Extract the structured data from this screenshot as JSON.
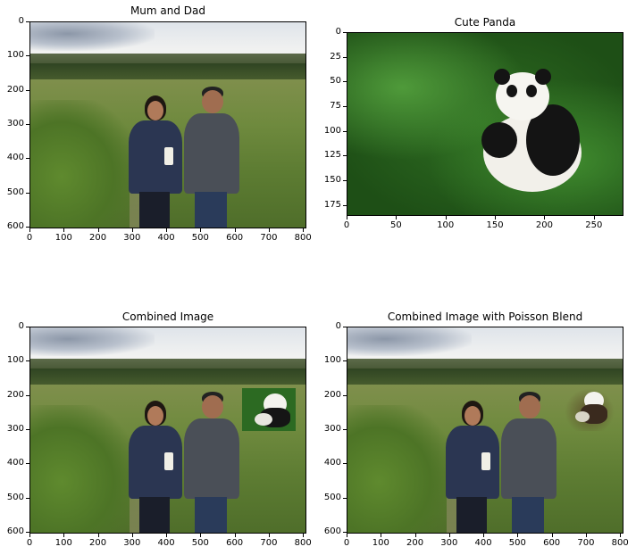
{
  "panels": [
    {
      "title": "Mum and Dad",
      "x_ticks": [
        "0",
        "100",
        "200",
        "300",
        "400",
        "500",
        "600",
        "700",
        "800"
      ],
      "y_ticks": [
        "0",
        "100",
        "200",
        "300",
        "400",
        "500",
        "600"
      ]
    },
    {
      "title": "Cute Panda",
      "x_ticks": [
        "0",
        "50",
        "100",
        "150",
        "200",
        "250"
      ],
      "y_ticks": [
        "0",
        "25",
        "50",
        "75",
        "100",
        "125",
        "150",
        "175"
      ]
    },
    {
      "title": "Combined Image",
      "x_ticks": [
        "0",
        "100",
        "200",
        "300",
        "400",
        "500",
        "600",
        "700",
        "800"
      ],
      "y_ticks": [
        "0",
        "100",
        "200",
        "300",
        "400",
        "500",
        "600"
      ]
    },
    {
      "title": "Combined Image with Poisson Blend",
      "x_ticks": [
        "0",
        "100",
        "200",
        "300",
        "400",
        "500",
        "600",
        "700",
        "800"
      ],
      "y_ticks": [
        "0",
        "100",
        "200",
        "300",
        "400",
        "500",
        "600"
      ]
    }
  ],
  "colors": {
    "sky": "#eef0f2",
    "grass": "#6f8a3e",
    "panda_bg": "#2f6e22"
  }
}
